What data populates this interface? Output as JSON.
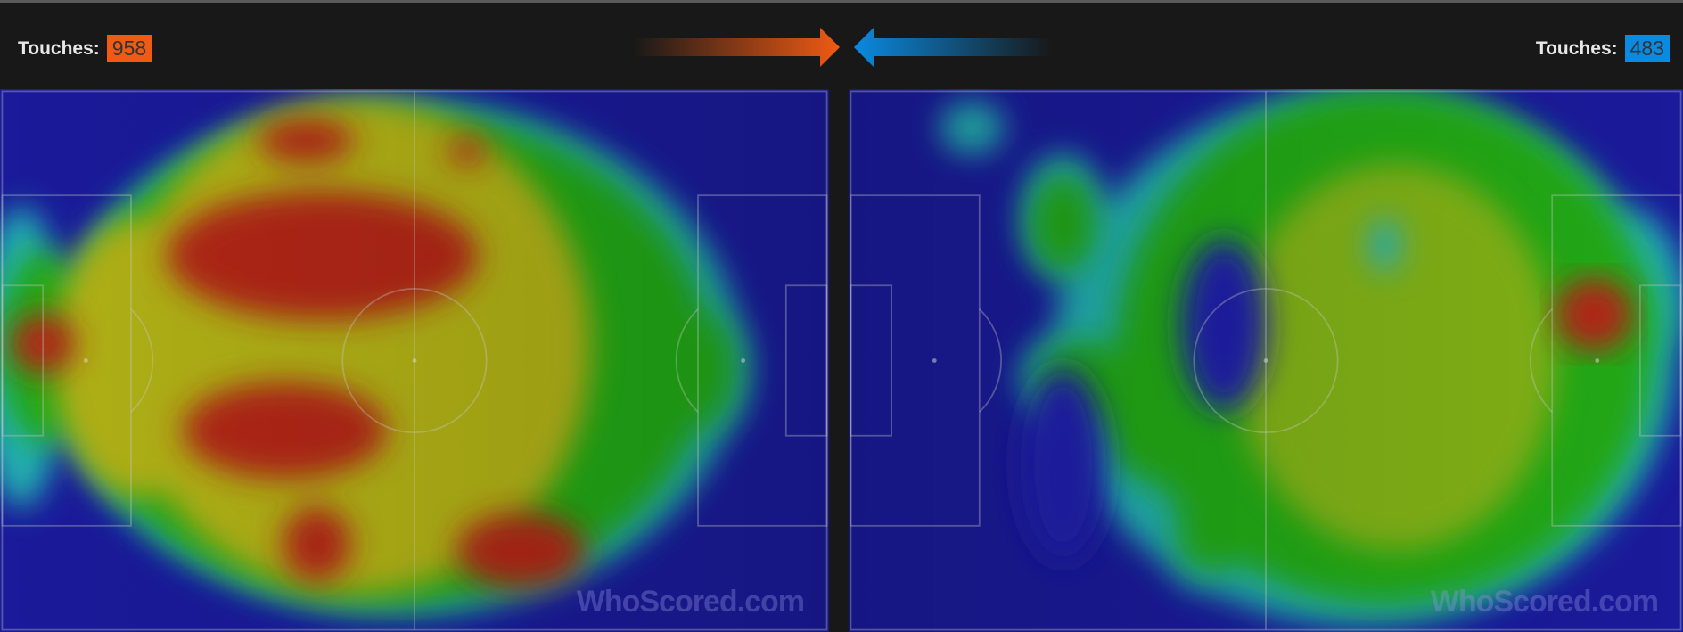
{
  "home": {
    "touches_label": "Touches:",
    "touches_value": "958",
    "color": "#f05a14",
    "direction": "right"
  },
  "away": {
    "touches_label": "Touches:",
    "touches_value": "483",
    "color": "#0a8ae0",
    "direction": "left"
  },
  "watermark": "WhoScored.com",
  "heatmap_colors": [
    "#1a1a9a",
    "#20b0b0",
    "#22a818",
    "#b0b018",
    "#b02818"
  ]
}
